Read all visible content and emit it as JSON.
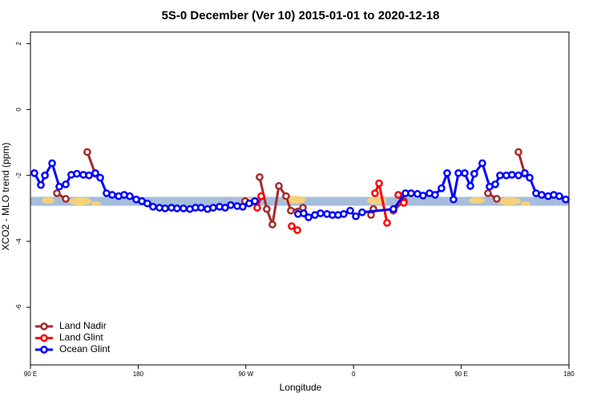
{
  "chart_data": {
    "type": "line",
    "title": "5S-0 December (Ver 10)   2015-01-01 to 2020-12-18",
    "x_label": "Longitude",
    "y_label": "XCO2 - MLO trend (ppm)",
    "xlim": [
      90,
      540
    ],
    "ylim": [
      -7.75,
      2.35
    ],
    "xticks": [
      {
        "value": 90,
        "label": "90 E"
      },
      180,
      {
        "value": 270,
        "label": "90 W"
      },
      {
        "value": 360,
        "label": "0"
      },
      {
        "value": 450,
        "label": "90 E"
      },
      {
        "value": 540,
        "label": "180"
      }
    ],
    "yticks": [
      -6,
      -4,
      -2,
      0,
      2
    ],
    "band": {
      "ylim": [
        -2.92,
        -2.65
      ],
      "color": "#a6bddb"
    },
    "legend": "bottom-left",
    "series": [
      {
        "name": "Land Nadir",
        "color": "#a52a2a",
        "x": [
          112.1,
          119.5,
          null,
          137.5,
          144.2,
          null,
          269.4,
          null,
          281.5,
          287.5,
          292.2,
          297.6,
          303.6,
          307.6,
          317.7,
          null,
          374.6,
          376.6,
          null,
          393.3,
          402.0,
          null,
          472.3,
          479.7,
          null,
          497.8,
          503.1
        ],
        "values": [
          -2.54,
          -2.71,
          null,
          -1.29,
          -1.95,
          null,
          -2.78,
          null,
          -2.05,
          -3.02,
          -3.49,
          -2.32,
          -2.63,
          -3.07,
          -2.98,
          null,
          -3.2,
          -3.02,
          null,
          -3.07,
          -2.78,
          null,
          -2.54,
          -2.71,
          null,
          -1.29,
          -1.95
        ]
      },
      {
        "name": "Land Glint",
        "color": "#ff0000",
        "x": [
          279.5,
          282.8,
          null,
          308.3,
          313.0,
          null,
          377.9,
          381.3,
          388.0,
          null,
          397.4,
          402.0
        ],
        "values": [
          -2.98,
          -2.63,
          null,
          -3.54,
          -3.66,
          null,
          -2.54,
          -2.24,
          -3.44,
          null,
          -2.59,
          -2.83
        ]
      },
      {
        "name": "Ocean Glint",
        "color": "#0000ff",
        "x": [
          93.3,
          98.7,
          102.1,
          108.1,
          114.1,
          119.5,
          124.1,
          128.8,
          134.2,
          138.9,
          144.2,
          148.3,
          153.6,
          158.3,
          163.7,
          168.3,
          173.0,
          178.4,
          183.1,
          187.7,
          192.4,
          197.8,
          202.5,
          207.8,
          212.5,
          217.9,
          223.2,
          227.9,
          232.6,
          238.0,
          242.7,
          248.0,
          252.7,
          257.4,
          262.8,
          267.4,
          272.8,
          277.5,
          null,
          313.6,
          318.3,
          322.4,
          327.7,
          332.4,
          337.8,
          342.4,
          347.1,
          351.8,
          357.2,
          361.9,
          367.2,
          393.3,
          403.4,
          408.1,
          413.4,
          418.1,
          423.5,
          428.1,
          433.5,
          438.2,
          443.5,
          447.6,
          452.9,
          457.6,
          460.9,
          467.6,
          473.7,
          478.4,
          482.4,
          487.7,
          492.4,
          497.8,
          503.1,
          507.2,
          512.5,
          517.2,
          522.6,
          527.3,
          531.9,
          537.3
        ],
        "values": [
          -1.93,
          -2.29,
          -2.0,
          -1.63,
          -2.34,
          -2.27,
          -1.98,
          -1.95,
          -1.98,
          -2.0,
          -1.93,
          -2.07,
          -2.54,
          -2.59,
          -2.63,
          -2.59,
          -2.63,
          -2.73,
          -2.78,
          -2.85,
          -2.95,
          -2.98,
          -3.0,
          -2.98,
          -3.0,
          -3.0,
          -3.02,
          -2.98,
          -2.98,
          -3.02,
          -2.98,
          -2.95,
          -2.98,
          -2.9,
          -2.93,
          -2.95,
          -2.85,
          -2.78,
          null,
          -3.17,
          -3.15,
          -3.27,
          -3.2,
          -3.15,
          -3.17,
          -3.2,
          -3.2,
          -3.17,
          -3.07,
          -3.24,
          -3.12,
          -3.02,
          -2.54,
          -2.54,
          -2.56,
          -2.61,
          -2.54,
          -2.59,
          -2.39,
          -1.93,
          -2.73,
          -1.93,
          -1.93,
          -2.32,
          -1.95,
          -1.63,
          -2.34,
          -2.27,
          -2.0,
          -2.0,
          -1.98,
          -2.0,
          -1.93,
          -2.07,
          -2.54,
          -2.59,
          -2.63,
          -2.59,
          -2.63,
          -2.73
        ]
      }
    ]
  }
}
